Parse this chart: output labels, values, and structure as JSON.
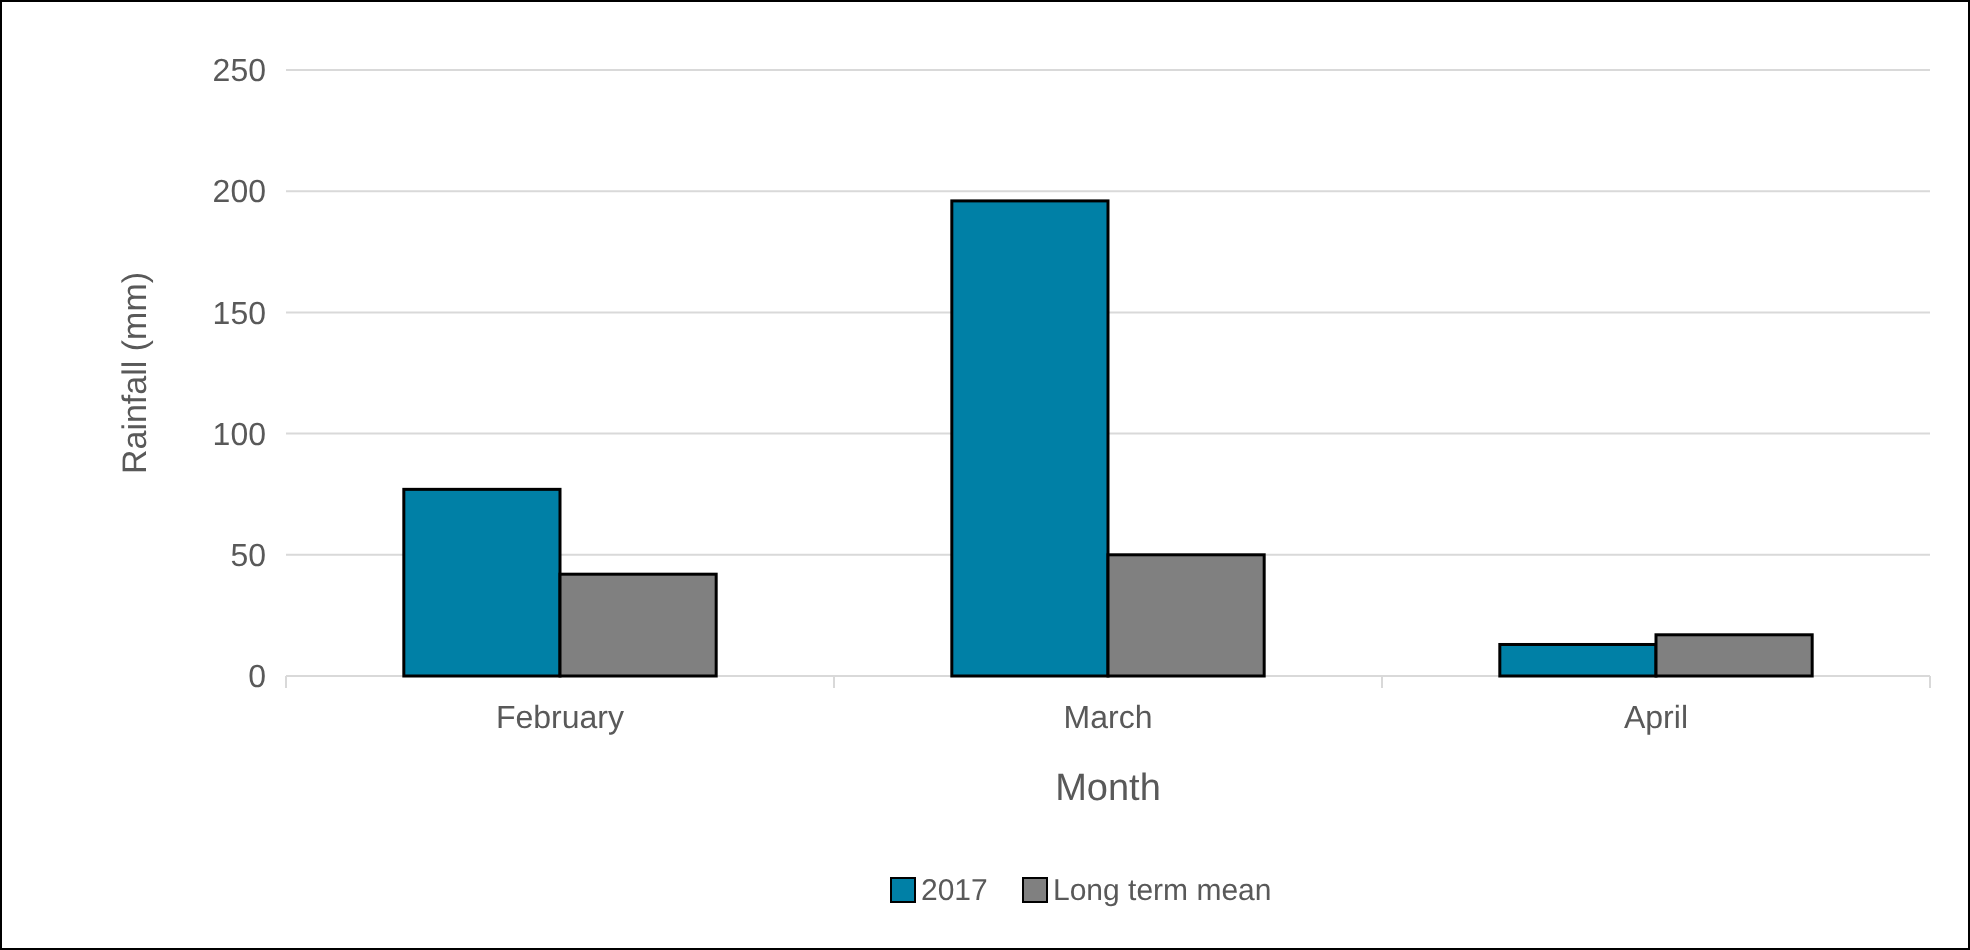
{
  "chart_data": {
    "type": "bar",
    "xlabel": "Month",
    "ylabel": "Rainfall (mm)",
    "categories": [
      "February",
      "March",
      "April"
    ],
    "series": [
      {
        "name": "2017",
        "color": "#0080a6",
        "values": [
          77,
          196,
          13
        ]
      },
      {
        "name": "Long term mean",
        "color": "#808080",
        "values": [
          42,
          50,
          17
        ]
      }
    ],
    "ylim": [
      0,
      250
    ],
    "yticks": [
      0,
      50,
      100,
      150,
      200,
      250
    ],
    "grid": "y",
    "legend": "bottom"
  }
}
